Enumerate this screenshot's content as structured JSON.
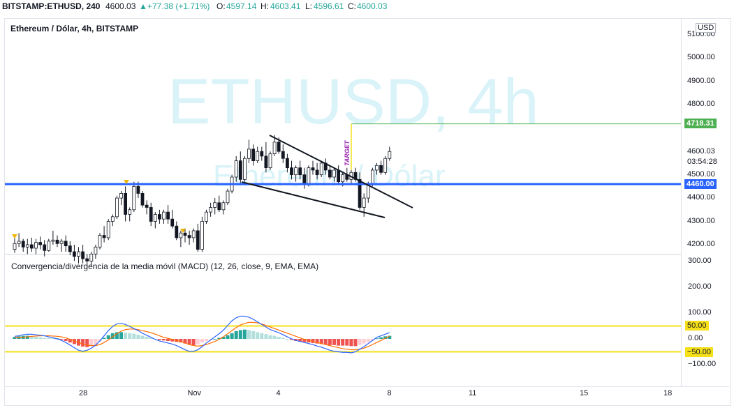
{
  "header": {
    "symbol": "BITSTAMP:ETHUSD, 240",
    "last": "4600.03",
    "change": "+77.38 (+1.71%)",
    "o_label": "O:",
    "o_value": "4597.14",
    "h_label": "H:",
    "h_value": "4603.41",
    "l_label": "L:",
    "l_value": "4596.61",
    "c_label": "C:",
    "c_value": "4600.03"
  },
  "chart": {
    "legend": "Ethereum / Dólar, 4h, BITSTAMP",
    "watermark_main": "ETHUSD, 4h",
    "watermark_sub": "Ethereum / Dólar",
    "currency": "USD",
    "target_label": "TARGET",
    "price_ticks": [
      "5100.00",
      "5000.00",
      "4900.00",
      "4800.00",
      "4500.00",
      "4400.00",
      "4300.00",
      "4200.00"
    ],
    "last_price": "4600.03",
    "countdown": "03:54:28",
    "target_price": "4718.31",
    "support_price": "4460.00",
    "colors": {
      "up": "#26a69a",
      "down": "#ef5350",
      "support": "#2962ff",
      "target": "#4caf50",
      "watermark": "#d9f3f9"
    }
  },
  "macd": {
    "legend": "Convergencia/divergencia de la media móvil (MACD) (12, 26, close, 9, EMA, EMA)",
    "ticks": [
      "300.00",
      "200.00",
      "100.00",
      "0.00",
      "−100.00"
    ],
    "level_upper": "50.00",
    "level_lower": "−50.00",
    "colors": {
      "macd_line": "#2962ff",
      "signal_line": "#ff6d00",
      "levels": "#f5e01a"
    }
  },
  "time_axis": [
    "28",
    "Nov",
    "4",
    "8",
    "11",
    "15",
    "18"
  ],
  "chart_data": {
    "type": "candlestick",
    "candles": [
      [
        4180,
        4230,
        4165,
        4205
      ],
      [
        4205,
        4250,
        4190,
        4215
      ],
      [
        4215,
        4225,
        4170,
        4190
      ],
      [
        4190,
        4225,
        4160,
        4200
      ],
      [
        4200,
        4230,
        4170,
        4185
      ],
      [
        4185,
        4225,
        4160,
        4210
      ],
      [
        4210,
        4235,
        4180,
        4200
      ],
      [
        4200,
        4220,
        4150,
        4175
      ],
      [
        4175,
        4225,
        4170,
        4215
      ],
      [
        4215,
        4260,
        4200,
        4220
      ],
      [
        4220,
        4240,
        4190,
        4205
      ],
      [
        4205,
        4225,
        4170,
        4215
      ],
      [
        4215,
        4240,
        4170,
        4195
      ],
      [
        4195,
        4215,
        4155,
        4170
      ],
      [
        4170,
        4200,
        4130,
        4150
      ],
      [
        4150,
        4190,
        4120,
        4170
      ],
      [
        4170,
        4200,
        4120,
        4140
      ],
      [
        4140,
        4160,
        4100,
        4130
      ],
      [
        4130,
        4170,
        4110,
        4160
      ],
      [
        4160,
        4200,
        4140,
        4190
      ],
      [
        4190,
        4250,
        4180,
        4240
      ],
      [
        4240,
        4280,
        4210,
        4230
      ],
      [
        4230,
        4310,
        4220,
        4300
      ],
      [
        4300,
        4330,
        4280,
        4320
      ],
      [
        4320,
        4410,
        4310,
        4400
      ],
      [
        4400,
        4430,
        4370,
        4420
      ],
      [
        4420,
        4450,
        4300,
        4330
      ],
      [
        4330,
        4360,
        4300,
        4350
      ],
      [
        4350,
        4470,
        4340,
        4450
      ],
      [
        4450,
        4470,
        4400,
        4420
      ],
      [
        4420,
        4430,
        4360,
        4370
      ],
      [
        4370,
        4390,
        4330,
        4360
      ],
      [
        4360,
        4380,
        4280,
        4300
      ],
      [
        4300,
        4340,
        4270,
        4330
      ],
      [
        4330,
        4350,
        4290,
        4310
      ],
      [
        4310,
        4350,
        4290,
        4340
      ],
      [
        4340,
        4370,
        4290,
        4310
      ],
      [
        4310,
        4350,
        4270,
        4280
      ],
      [
        4280,
        4300,
        4220,
        4230
      ],
      [
        4230,
        4260,
        4190,
        4250
      ],
      [
        4250,
        4270,
        4210,
        4240
      ],
      [
        4240,
        4260,
        4200,
        4230
      ],
      [
        4230,
        4270,
        4210,
        4260
      ],
      [
        4260,
        4290,
        4170,
        4180
      ],
      [
        4180,
        4320,
        4170,
        4300
      ],
      [
        4300,
        4350,
        4290,
        4340
      ],
      [
        4340,
        4380,
        4320,
        4360
      ],
      [
        4360,
        4400,
        4330,
        4380
      ],
      [
        4380,
        4410,
        4340,
        4350
      ],
      [
        4350,
        4390,
        4330,
        4380
      ],
      [
        4380,
        4440,
        4370,
        4430
      ],
      [
        4430,
        4500,
        4420,
        4490
      ],
      [
        4490,
        4580,
        4470,
        4560
      ],
      [
        4560,
        4600,
        4460,
        4480
      ],
      [
        4480,
        4580,
        4470,
        4570
      ],
      [
        4570,
        4650,
        4550,
        4610
      ],
      [
        4610,
        4630,
        4540,
        4560
      ],
      [
        4560,
        4620,
        4550,
        4600
      ],
      [
        4600,
        4620,
        4560,
        4580
      ],
      [
        4580,
        4640,
        4510,
        4530
      ],
      [
        4530,
        4600,
        4520,
        4590
      ],
      [
        4590,
        4670,
        4580,
        4640
      ],
      [
        4640,
        4660,
        4590,
        4600
      ],
      [
        4600,
        4630,
        4550,
        4570
      ],
      [
        4570,
        4590,
        4510,
        4530
      ],
      [
        4530,
        4560,
        4480,
        4500
      ],
      [
        4500,
        4540,
        4470,
        4530
      ],
      [
        4530,
        4560,
        4480,
        4500
      ],
      [
        4500,
        4530,
        4440,
        4460
      ],
      [
        4460,
        4540,
        4450,
        4530
      ],
      [
        4530,
        4560,
        4500,
        4520
      ],
      [
        4520,
        4550,
        4480,
        4500
      ],
      [
        4500,
        4560,
        4490,
        4550
      ],
      [
        4550,
        4570,
        4500,
        4520
      ],
      [
        4520,
        4540,
        4480,
        4490
      ],
      [
        4490,
        4530,
        4470,
        4520
      ],
      [
        4520,
        4540,
        4460,
        4470
      ],
      [
        4470,
        4510,
        4450,
        4500
      ],
      [
        4500,
        4530,
        4470,
        4480
      ],
      [
        4480,
        4520,
        4460,
        4510
      ],
      [
        4510,
        4530,
        4470,
        4480
      ],
      [
        4480,
        4510,
        4350,
        4360
      ],
      [
        4360,
        4420,
        4320,
        4400
      ],
      [
        4400,
        4470,
        4380,
        4460
      ],
      [
        4460,
        4530,
        4450,
        4520
      ],
      [
        4520,
        4550,
        4500,
        4540
      ],
      [
        4540,
        4560,
        4500,
        4510
      ],
      [
        4510,
        4580,
        4500,
        4570
      ],
      [
        4570,
        4620,
        4560,
        4600
      ]
    ],
    "ylim": [
      4170,
      5140
    ],
    "macd": {
      "hist": [
        8,
        10,
        12,
        12,
        10,
        8,
        6,
        4,
        3,
        2,
        2,
        -2,
        -8,
        -14,
        -20,
        -26,
        -30,
        -32,
        -28,
        -24,
        -10,
        4,
        14,
        22,
        26,
        26,
        24,
        22,
        20,
        16,
        12,
        8,
        4,
        0,
        -4,
        -6,
        -8,
        -10,
        -12,
        -14,
        -18,
        -22,
        -24,
        -22,
        -14,
        -8,
        -4,
        0,
        4,
        8,
        14,
        22,
        30,
        34,
        36,
        34,
        30,
        26,
        22,
        18,
        14,
        12,
        8,
        4,
        0,
        -4,
        -8,
        -10,
        -12,
        -14,
        -16,
        -18,
        -20,
        -22,
        -24,
        -24,
        -26,
        -26,
        -26,
        -28,
        -28,
        -24,
        -18,
        -12,
        -6,
        2,
        6,
        10,
        12
      ],
      "macd_line": [
        10,
        12,
        16,
        18,
        18,
        16,
        14,
        12,
        8,
        4,
        0,
        -6,
        -14,
        -24,
        -34,
        -44,
        -48,
        -44,
        -36,
        -24,
        -8,
        12,
        32,
        48,
        58,
        60,
        56,
        48,
        40,
        32,
        22,
        14,
        6,
        -2,
        -8,
        -12,
        -16,
        -20,
        -26,
        -34,
        -42,
        -48,
        -48,
        -42,
        -30,
        -16,
        -4,
        8,
        20,
        34,
        52,
        70,
        82,
        88,
        88,
        84,
        76,
        66,
        56,
        46,
        36,
        30,
        24,
        16,
        8,
        0,
        -6,
        -10,
        -14,
        -18,
        -22,
        -28,
        -32,
        -38,
        -44,
        -48,
        -50,
        -52,
        -52,
        -54,
        -50,
        -40,
        -30,
        -18,
        -6,
        6,
        12,
        18,
        24
      ],
      "signal_line": [
        4,
        5,
        6,
        8,
        10,
        11,
        12,
        12,
        12,
        11,
        10,
        8,
        4,
        -2,
        -8,
        -14,
        -20,
        -24,
        -26,
        -26,
        -22,
        -14,
        -4,
        8,
        20,
        30,
        36,
        38,
        38,
        36,
        32,
        28,
        24,
        18,
        12,
        6,
        2,
        -2,
        -6,
        -10,
        -16,
        -22,
        -26,
        -28,
        -26,
        -22,
        -16,
        -10,
        -2,
        8,
        20,
        32,
        44,
        54,
        60,
        64,
        64,
        62,
        58,
        52,
        46,
        40,
        34,
        28,
        22,
        16,
        10,
        4,
        -2,
        -6,
        -10,
        -14,
        -18,
        -22,
        -26,
        -30,
        -34,
        -38,
        -40,
        -42,
        -42,
        -40,
        -36,
        -30,
        -22,
        -14,
        -6,
        2,
        10
      ],
      "levels": [
        50,
        -50
      ],
      "ylim": [
        -130,
        320
      ]
    }
  }
}
